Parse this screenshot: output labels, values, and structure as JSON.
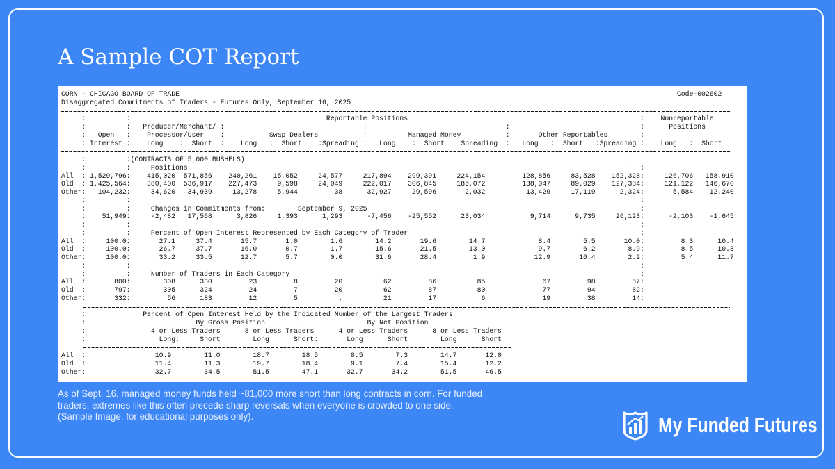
{
  "page": {
    "title": "A Sample COT Report",
    "report": {
      "market": "CORN - CHICAGO BOARD OF TRADE",
      "code": "Code-002602",
      "subtitle": "Disaggregated Commitments of Traders - Futures Only, September 16, 2025",
      "columns": [
        "     :          :                                                Reportable Positions                                                         :    Nonreportable",
        "     :          :   Producer/Merchant/ :                                  :                                  :                                :      Positions",
        "     :   Open   :    Processor/User    :           Swap Dealers           :          Managed Money           :       Other Reportables        :",
        "     : Interest :    Long    :  Short  :    Long   :  Short    :Spreading :   Long    :  Short   :Spreading  :   Long   :  Short   :Spreading :    Long   :  Short"
      ],
      "body": [
        "     :          :(CONTRACTS OF 5,000 BUSHELS)                                                                                             :",
        "     :          :     Positions                                                                                                               :",
        {
          "label": "All  :",
          "cells": [
            "1,529,796:",
            "415,020",
            "571,856",
            "240,261",
            "15,052",
            "24,577",
            "217,894",
            "299,391",
            "224,154",
            "128,856",
            "83,528",
            "152,328:",
            "126,706",
            "158,910"
          ]
        },
        {
          "label": "Old  :",
          "cells": [
            "1,425,564:",
            "380,400",
            "536,917",
            "227,473",
            "9,598",
            "24,049",
            "222,017",
            "306,845",
            "185,072",
            "138,047",
            "89,029",
            "127,384:",
            "121,122",
            "146,670"
          ]
        },
        {
          "label": "Other:",
          "cells": [
            "104,232:",
            "34,620",
            "34,939",
            "13,278",
            "5,944",
            "38",
            "32,927",
            "29,596",
            "2,032",
            "13,429",
            "17,119",
            "2,324:",
            "5,584",
            "12,240"
          ]
        },
        "     :          :                                                                                                                             :",
        "     :          :     Changes in Commitments from:        September 9, 2025                                                                   :",
        {
          "label": ":",
          "cells": [
            "51,949:",
            "-2,482",
            "17,568",
            "3,826",
            "1,393",
            "1,293",
            "-7,456",
            "-25,552",
            "23,034",
            "9,714",
            "9,735",
            "26,123:",
            "-2,103",
            "-1,645"
          ]
        },
        "     :          :                                                                                                                             :",
        "     :          :     Percent of Open Interest Represented by Each Category of Trader                                                         :",
        {
          "label": "All  :",
          "cells": [
            "100.0:",
            "27.1",
            "37.4",
            "15.7",
            "1.0",
            "1.6",
            "14.2",
            "19.6",
            "14.7",
            "8.4",
            "5.5",
            "10.0:",
            "8.3",
            "10.4"
          ]
        },
        {
          "label": "Old  :",
          "cells": [
            "100.0:",
            "26.7",
            "37.7",
            "16.0",
            "0.7",
            "1.7",
            "15.6",
            "21.5",
            "13.0",
            "9.7",
            "6.2",
            "8.9:",
            "8.5",
            "10.3"
          ]
        },
        {
          "label": "Other:",
          "cells": [
            "100.0:",
            "33.2",
            "33.5",
            "12.7",
            "5.7",
            "0.0",
            "31.6",
            "28.4",
            "1.9",
            "12.9",
            "16.4",
            "2.2:",
            "5.4",
            "11.7"
          ]
        },
        "     :          :                                                                                                                             :",
        "     :          :     Number of Traders in Each Category                                                                                      :",
        {
          "label": "All  :",
          "cells": [
            "800:",
            "308",
            "330",
            "23",
            "8",
            "20",
            "62",
            "86",
            "85",
            "67",
            "98",
            "87:"
          ]
        },
        {
          "label": "Old  :",
          "cells": [
            "797:",
            "305",
            "324",
            "24",
            "7",
            "20",
            "62",
            "87",
            "80",
            "77",
            "94",
            "82:"
          ]
        },
        {
          "label": "Other:",
          "cells": [
            "332:",
            "56",
            "183",
            "12",
            "5",
            ".",
            "21",
            "17",
            "6",
            "19",
            "38",
            "14:"
          ]
        }
      ],
      "concentration_header": [
        "     :              Percent of Open Interest Held by the Indicated Number of the Largest Traders",
        "     :                           By Gross Position                         By Net Position",
        "     :                4 or Less Traders      8 or Less Traders      4 or Less Traders      8 or Less Traders",
        "     :                  Long:     Short        Long      Short:       Long      Short        Long      Short"
      ],
      "concentration": [
        {
          "label": "All  :",
          "cells": [
            "10.9",
            "11.0",
            "18.7",
            "18.5",
            "8.5",
            "7.3",
            "14.7",
            "12.0"
          ]
        },
        {
          "label": "Old  :",
          "cells": [
            "11.4",
            "11.3",
            "19.7",
            "18.4",
            "9.1",
            "7.4",
            "15.4",
            "12.2"
          ]
        },
        {
          "label": "Other:",
          "cells": [
            "32.7",
            "34.5",
            "51.5",
            "47.1",
            "32.7",
            "34.2",
            "51.5",
            "46.5"
          ]
        }
      ]
    },
    "caption": [
      "As of Sept. 16, managed money funds held ~81,000 more short than long contracts in corn. For funded",
      "traders, extremes like this often precede sharp reversals when everyone is crowded to one side.",
      "(Sample Image, for educational purposes only)."
    ],
    "brand": "My Funded Futures"
  }
}
